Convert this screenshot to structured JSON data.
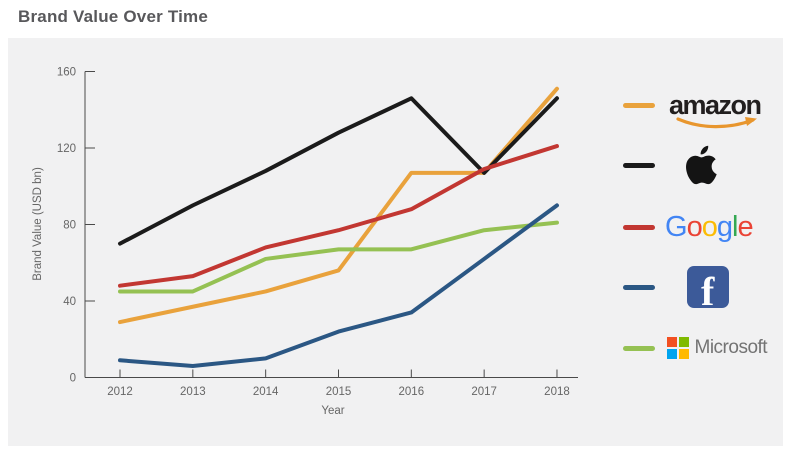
{
  "page": {
    "title": "Brand Value Over Time"
  },
  "chart_data": {
    "type": "line",
    "title": "Brand Value Over Time",
    "xlabel": "Year",
    "ylabel": "Brand Value (USD bn)",
    "categories": [
      2012,
      2013,
      2014,
      2015,
      2016,
      2017,
      2018
    ],
    "x_tick_labels": [
      "2012",
      "2013",
      "2014",
      "2015",
      "2016",
      "2017",
      "2018"
    ],
    "y_tick_labels": [
      "0",
      "40",
      "80",
      "120",
      "160"
    ],
    "y_ticks": [
      0,
      40,
      80,
      120,
      160
    ],
    "ylim": [
      0,
      160
    ],
    "grid": false,
    "legend_position": "right-outside",
    "series": [
      {
        "name": "amazon",
        "color": "#E9A23C",
        "values": [
          29,
          37,
          45,
          56,
          107,
          107,
          151
        ]
      },
      {
        "name": "apple",
        "color": "#1B1B1B",
        "values": [
          70,
          90,
          108,
          128,
          146,
          107,
          146
        ]
      },
      {
        "name": "google",
        "color": "#C23732",
        "values": [
          48,
          53,
          68,
          77,
          88,
          109,
          121
        ]
      },
      {
        "name": "microsoft",
        "color": "#95C153",
        "values": [
          45,
          45,
          62,
          67,
          67,
          77,
          81
        ]
      },
      {
        "name": "facebook",
        "color": "#2B5784",
        "values": [
          9,
          6,
          10,
          24,
          34,
          62,
          90
        ]
      }
    ]
  },
  "legend": {
    "amazon": {
      "label": "amazon"
    },
    "google": {
      "letters": [
        {
          "ch": "G",
          "color": "#4285F4"
        },
        {
          "ch": "o",
          "color": "#EA4335"
        },
        {
          "ch": "o",
          "color": "#FBBC05"
        },
        {
          "ch": "g",
          "color": "#4285F4"
        },
        {
          "ch": "l",
          "color": "#34A853"
        },
        {
          "ch": "e",
          "color": "#EA4335"
        }
      ]
    },
    "facebook": {
      "letter": "f"
    },
    "microsoft": {
      "label": "Microsoft",
      "squares": [
        "#F25022",
        "#7FBA00",
        "#00A4EF",
        "#FFB900"
      ]
    }
  },
  "colors": {
    "page_bg": "#FFFFFF",
    "panel_bg": "#F1F1F2",
    "title_text": "#58585B",
    "axis_line": "#4A4A4A",
    "tick_text": "#666666",
    "amazon_smile": "#E8962E",
    "amazon_text": "#221F1F",
    "apple_glyph": "#141414",
    "facebook_tile": "#3C5A99",
    "microsoft_text": "#737373"
  }
}
